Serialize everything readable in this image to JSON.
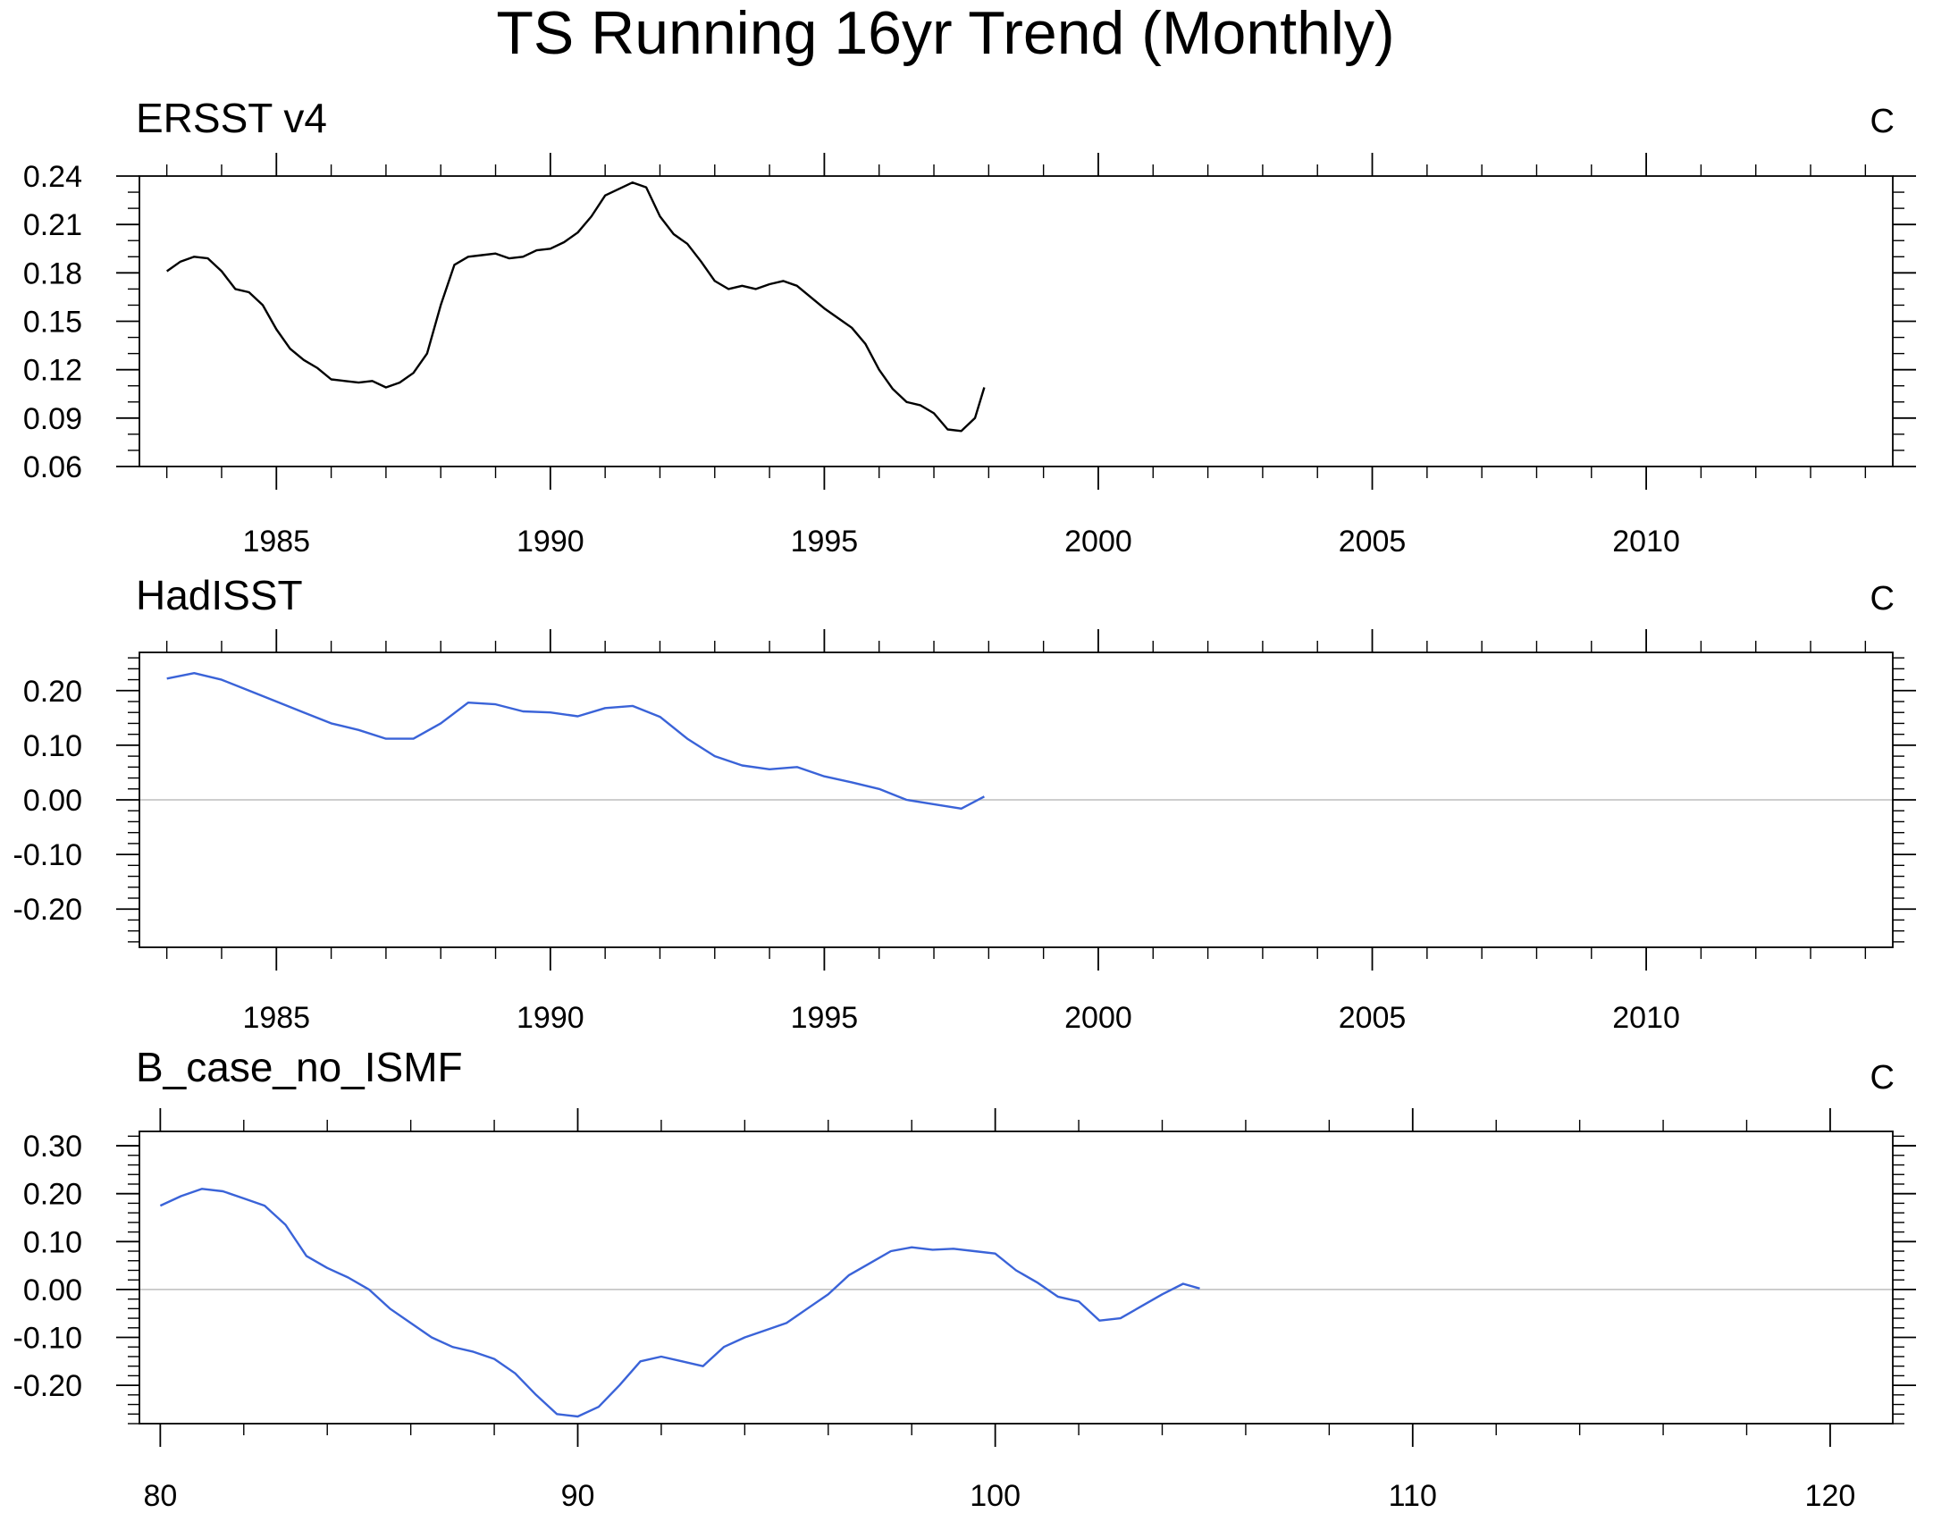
{
  "title": "TS Running 16yr Trend (Monthly)",
  "chart_data": [
    {
      "type": "line",
      "title": "ERSST v4",
      "units": "C",
      "line_color": "#000000",
      "zero_line": false,
      "xlim": [
        1982.5,
        2014.5
      ],
      "ylim": [
        0.06,
        0.24
      ],
      "x_major_ticks": [
        1985,
        1990,
        1995,
        2000,
        2005,
        2010
      ],
      "x_minor_step": 1,
      "x_tick_labels": [
        "1985",
        "1990",
        "1995",
        "2000",
        "2005",
        "2010"
      ],
      "y_major_ticks": [
        0.06,
        0.09,
        0.12,
        0.15,
        0.18,
        0.21,
        0.24
      ],
      "y_minor_step": 0.01,
      "y_tick_labels": [
        "0.06",
        "0.09",
        "0.12",
        "0.15",
        "0.18",
        "0.21",
        "0.24"
      ],
      "series": [
        {
          "x": [
            1983.0,
            1983.25,
            1983.5,
            1983.75,
            1984.0,
            1984.25,
            1984.5,
            1984.75,
            1985.0,
            1985.25,
            1985.5,
            1985.75,
            1986.0,
            1986.25,
            1986.5,
            1986.75,
            1987.0,
            1987.25,
            1987.5,
            1987.75,
            1988.0,
            1988.25,
            1988.5,
            1988.75,
            1989.0,
            1989.25,
            1989.5,
            1989.75,
            1990.0,
            1990.25,
            1990.5,
            1990.75,
            1991.0,
            1991.25,
            1991.5,
            1991.75,
            1992.0,
            1992.25,
            1992.5,
            1992.75,
            1993.0,
            1993.25,
            1993.5,
            1993.75,
            1994.0,
            1994.25,
            1994.5,
            1994.75,
            1995.0,
            1995.25,
            1995.5,
            1995.75,
            1996.0,
            1996.25,
            1996.5,
            1996.75,
            1997.0,
            1997.25,
            1997.5,
            1997.75,
            1997.92
          ],
          "y": [
            0.181,
            0.187,
            0.19,
            0.189,
            0.181,
            0.17,
            0.168,
            0.16,
            0.145,
            0.133,
            0.126,
            0.121,
            0.114,
            0.113,
            0.112,
            0.113,
            0.109,
            0.112,
            0.118,
            0.13,
            0.16,
            0.185,
            0.19,
            0.191,
            0.192,
            0.189,
            0.19,
            0.194,
            0.195,
            0.199,
            0.205,
            0.215,
            0.228,
            0.232,
            0.236,
            0.233,
            0.215,
            0.204,
            0.198,
            0.187,
            0.175,
            0.17,
            0.172,
            0.17,
            0.173,
            0.175,
            0.172,
            0.165,
            0.158,
            0.152,
            0.146,
            0.136,
            0.12,
            0.108,
            0.1,
            0.098,
            0.093,
            0.083,
            0.082,
            0.09,
            0.109
          ]
        }
      ]
    },
    {
      "type": "line",
      "title": "HadISST",
      "units": "C",
      "line_color": "#3a63d8",
      "zero_line": true,
      "xlim": [
        1982.5,
        2014.5
      ],
      "ylim": [
        -0.27,
        0.27
      ],
      "x_major_ticks": [
        1985,
        1990,
        1995,
        2000,
        2005,
        2010
      ],
      "x_minor_step": 1,
      "x_tick_labels": [
        "1985",
        "1990",
        "1995",
        "2000",
        "2005",
        "2010"
      ],
      "y_major_ticks": [
        -0.2,
        -0.1,
        0.0,
        0.1,
        0.2
      ],
      "y_minor_step": 0.02,
      "y_tick_labels": [
        "-0.20",
        "-0.10",
        "0.00",
        "0.10",
        "0.20"
      ],
      "series": [
        {
          "x": [
            1983.0,
            1983.5,
            1984.0,
            1984.5,
            1985.0,
            1985.5,
            1986.0,
            1986.5,
            1987.0,
            1987.5,
            1988.0,
            1988.5,
            1989.0,
            1989.5,
            1990.0,
            1990.5,
            1991.0,
            1991.5,
            1992.0,
            1992.5,
            1993.0,
            1993.5,
            1994.0,
            1994.5,
            1995.0,
            1995.5,
            1996.0,
            1996.5,
            1997.0,
            1997.5,
            1997.92
          ],
          "y": [
            0.222,
            0.232,
            0.22,
            0.2,
            0.18,
            0.16,
            0.14,
            0.128,
            0.112,
            0.112,
            0.14,
            0.178,
            0.175,
            0.162,
            0.16,
            0.153,
            0.168,
            0.172,
            0.152,
            0.112,
            0.08,
            0.063,
            0.056,
            0.06,
            0.043,
            0.032,
            0.02,
            0.0,
            -0.008,
            -0.016,
            0.006
          ]
        }
      ]
    },
    {
      "type": "line",
      "title": "B_case_no_ISMF",
      "units": "C",
      "line_color": "#3a63d8",
      "zero_line": true,
      "xlim": [
        79.5,
        121.5
      ],
      "ylim": [
        -0.28,
        0.33
      ],
      "x_major_ticks": [
        80,
        90,
        100,
        110,
        120
      ],
      "x_minor_step": 2,
      "x_tick_labels": [
        "80",
        "90",
        "100",
        "110",
        "120"
      ],
      "y_major_ticks": [
        -0.2,
        -0.1,
        0.0,
        0.1,
        0.2,
        0.3
      ],
      "y_minor_step": 0.02,
      "y_tick_labels": [
        "-0.20",
        "-0.10",
        "0.00",
        "0.10",
        "0.20",
        "0.30"
      ],
      "series": [
        {
          "x": [
            80.0,
            80.5,
            81.0,
            81.5,
            82.0,
            82.5,
            83.0,
            83.5,
            84.0,
            84.5,
            85.0,
            85.5,
            86.0,
            86.5,
            87.0,
            87.5,
            88.0,
            88.5,
            89.0,
            89.5,
            90.0,
            90.5,
            91.0,
            91.5,
            92.0,
            92.5,
            93.0,
            93.5,
            94.0,
            94.5,
            95.0,
            95.5,
            96.0,
            96.5,
            97.0,
            97.5,
            98.0,
            98.5,
            99.0,
            99.5,
            100.0,
            100.5,
            101.0,
            101.5,
            102.0,
            102.5,
            103.0,
            103.5,
            104.0,
            104.5,
            104.9
          ],
          "y": [
            0.175,
            0.195,
            0.21,
            0.205,
            0.19,
            0.175,
            0.135,
            0.07,
            0.045,
            0.025,
            0.0,
            -0.04,
            -0.07,
            -0.1,
            -0.12,
            -0.13,
            -0.145,
            -0.175,
            -0.22,
            -0.26,
            -0.265,
            -0.245,
            -0.2,
            -0.15,
            -0.14,
            -0.15,
            -0.16,
            -0.12,
            -0.1,
            -0.085,
            -0.07,
            -0.04,
            -0.01,
            0.03,
            0.055,
            0.08,
            0.088,
            0.083,
            0.085,
            0.08,
            0.075,
            0.04,
            0.015,
            -0.015,
            -0.025,
            -0.065,
            -0.06,
            -0.035,
            -0.01,
            0.012,
            0.002
          ]
        }
      ]
    }
  ]
}
